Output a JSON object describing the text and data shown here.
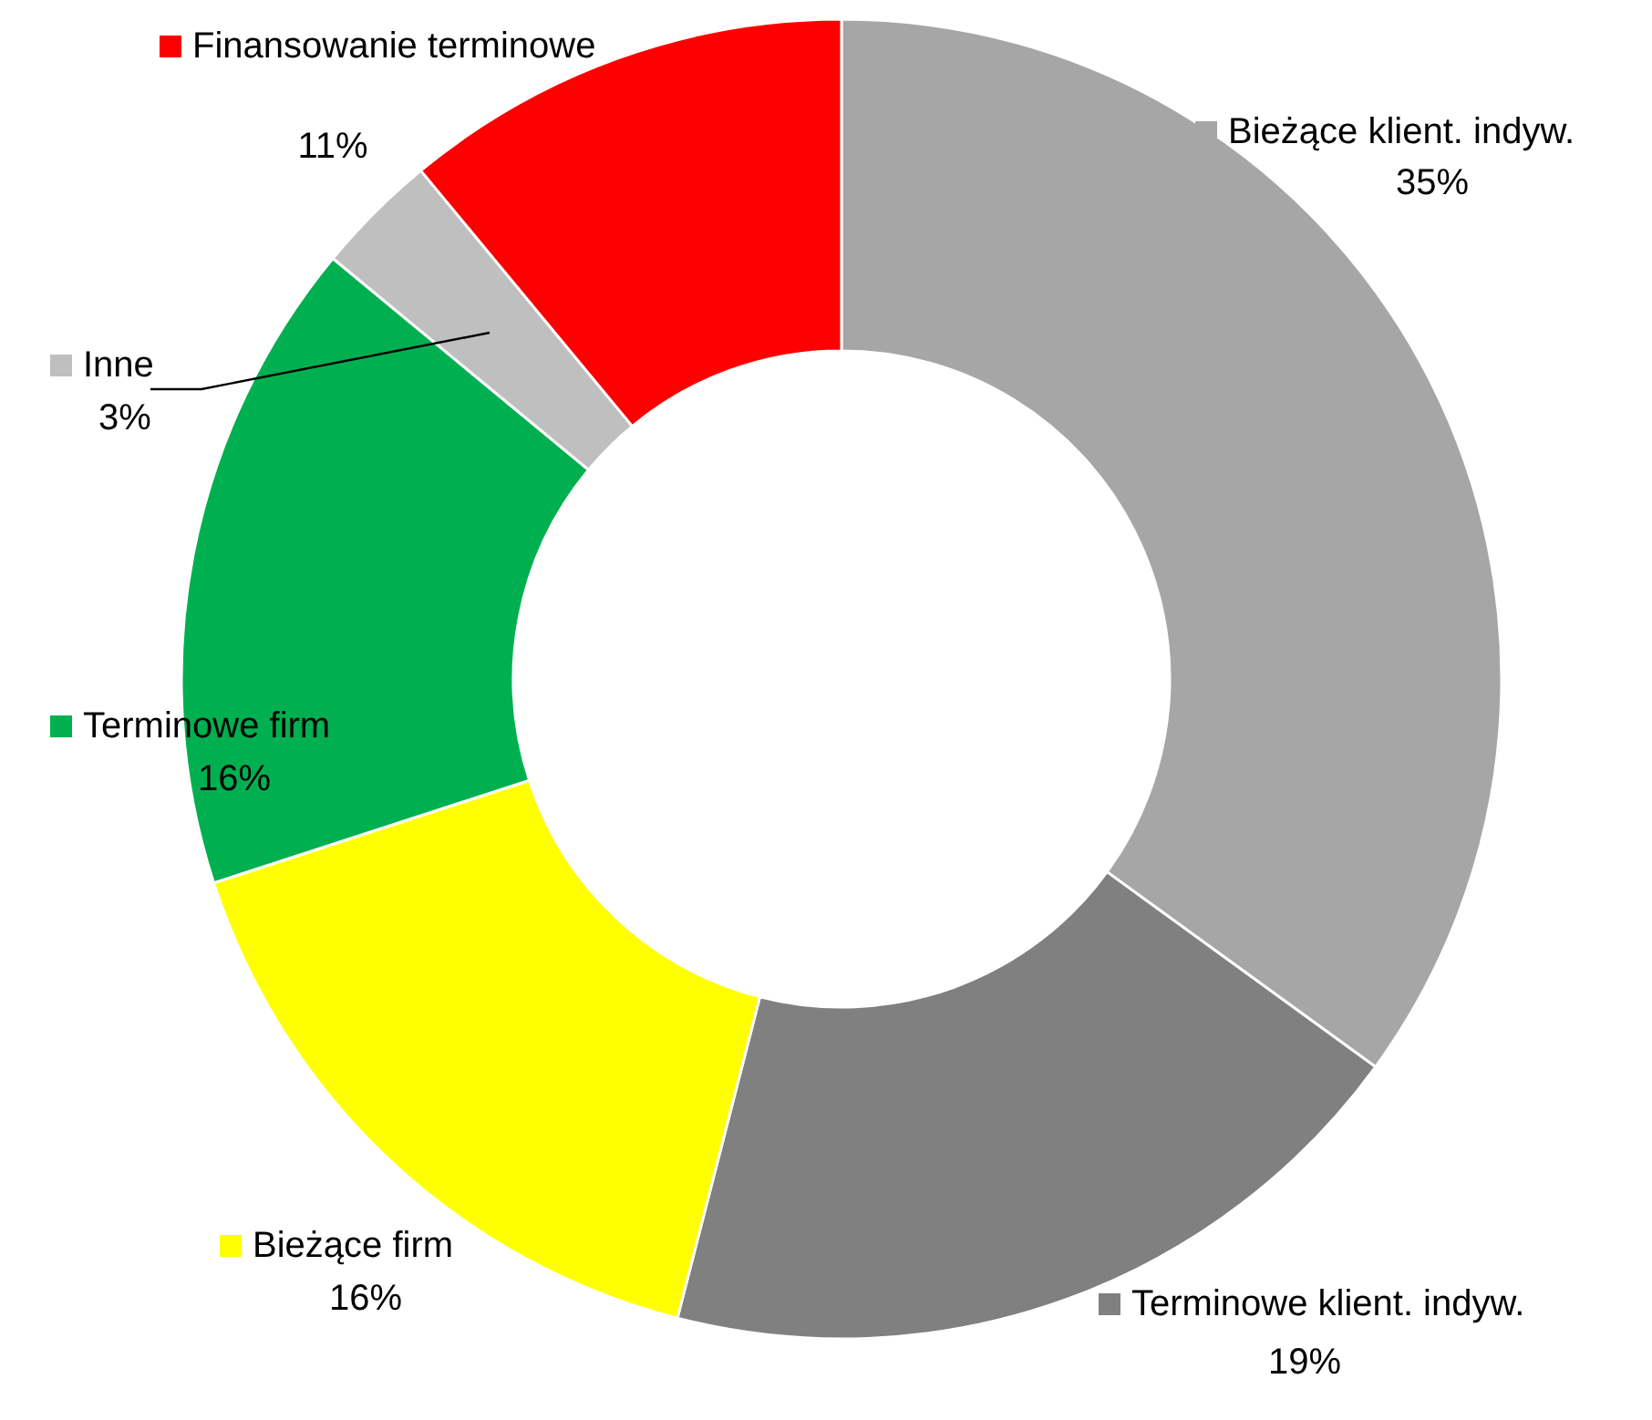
{
  "chart_data": {
    "type": "donut",
    "categories": [
      "Bieżące klient. indyw.",
      "Terminowe klient. indyw.",
      "Bieżące firm",
      "Terminowe firm",
      "Inne",
      "Finansowanie terminowe"
    ],
    "values": [
      35,
      19,
      16,
      16,
      3,
      11
    ],
    "colors": [
      "#a6a6a6",
      "#808080",
      "#ffff00",
      "#00b050",
      "#bfbfbf",
      "#ff0000"
    ],
    "value_labels": [
      "35%",
      "19%",
      "16%",
      "16%",
      "3%",
      "11%"
    ],
    "legend": "left"
  }
}
